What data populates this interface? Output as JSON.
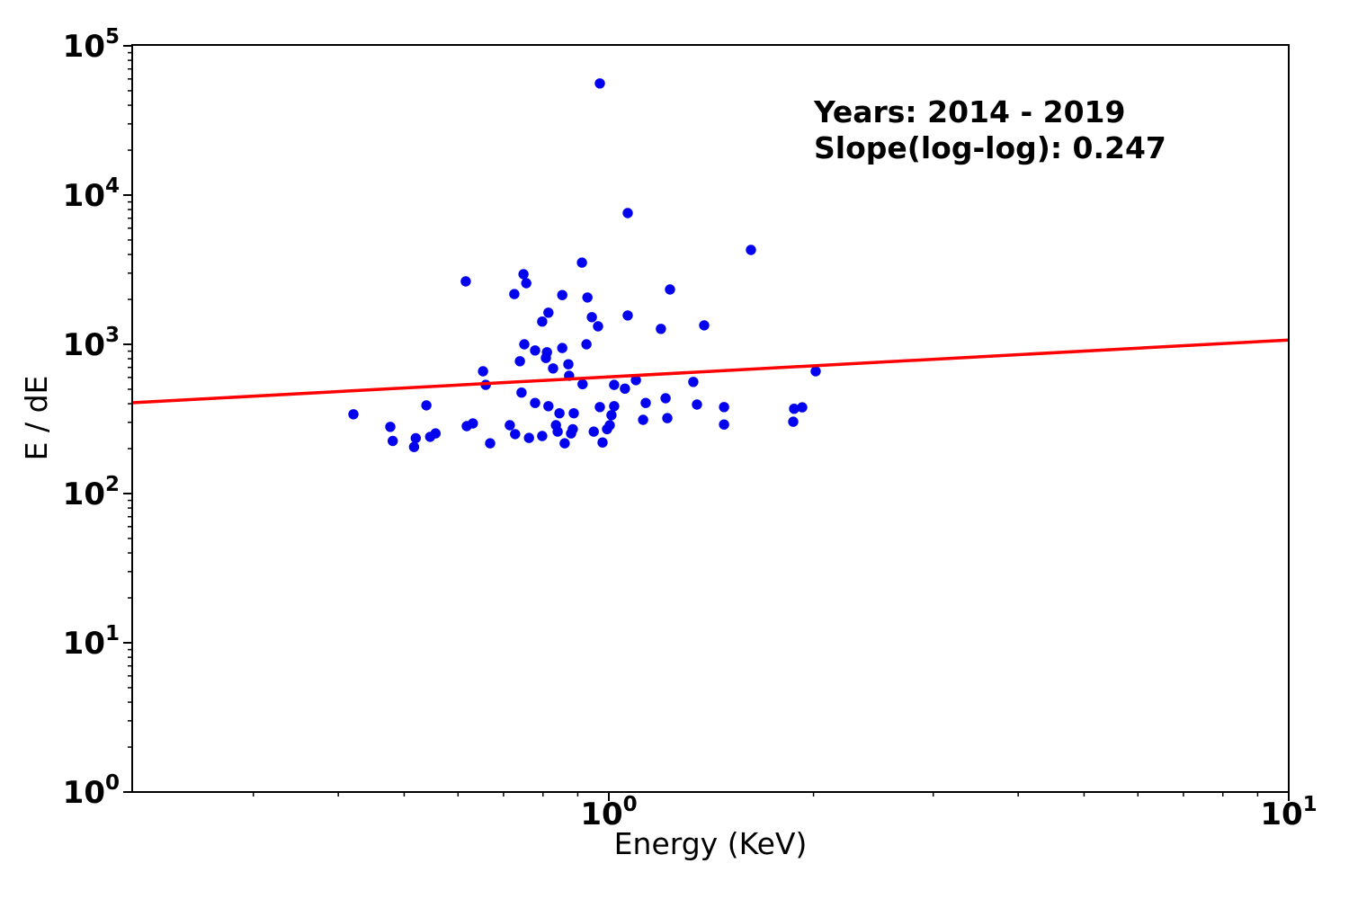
{
  "figure": {
    "background": "#ffffff",
    "annotation": {
      "line1": "Years: 2014 - 2019",
      "line2": "Slope(log-log): 0.247"
    }
  },
  "chart_data": {
    "type": "scatter",
    "title": "",
    "xlabel": "Energy (KeV)",
    "ylabel": "E / dE",
    "xscale": "log",
    "yscale": "log",
    "xlim": [
      0.199,
      10
    ],
    "ylim": [
      1,
      100000
    ],
    "grid": false,
    "legend": "none",
    "annotation_lines": [
      "Years: 2014 - 2019",
      "Slope(log-log): 0.247"
    ],
    "years": "2014 - 2019",
    "slope_loglog": 0.247,
    "x_major_ticks": [
      1,
      10
    ],
    "y_major_ticks": [
      1,
      10,
      100,
      1000,
      10000,
      100000
    ],
    "colors": {
      "points": "#0202EE",
      "fit_line": "#FF0000",
      "axis": "#000000"
    },
    "marker_radius_px": 5.7,
    "points": [
      [
        0.97,
        56000
      ],
      [
        1.066,
        7580
      ],
      [
        0.913,
        3530
      ],
      [
        1.618,
        4290
      ],
      [
        1.23,
        2330
      ],
      [
        0.616,
        2640
      ],
      [
        0.749,
        2950
      ],
      [
        0.756,
        2570
      ],
      [
        0.726,
        2170
      ],
      [
        0.854,
        2140
      ],
      [
        0.93,
        2060
      ],
      [
        0.815,
        1630
      ],
      [
        0.798,
        1420
      ],
      [
        0.944,
        1520
      ],
      [
        0.964,
        1320
      ],
      [
        1.066,
        1560
      ],
      [
        1.193,
        1270
      ],
      [
        1.381,
        1340
      ],
      [
        0.751,
        1000
      ],
      [
        0.779,
        910
      ],
      [
        0.811,
        885
      ],
      [
        0.808,
        810
      ],
      [
        0.854,
        945
      ],
      [
        0.927,
        1000
      ],
      [
        0.74,
        770
      ],
      [
        0.828,
        690
      ],
      [
        0.872,
        735
      ],
      [
        0.874,
        615
      ],
      [
        0.653,
        660
      ],
      [
        0.659,
        535
      ],
      [
        2.015,
        660
      ],
      [
        0.915,
        540
      ],
      [
        1.018,
        535
      ],
      [
        1.056,
        505
      ],
      [
        1.096,
        575
      ],
      [
        1.331,
        560
      ],
      [
        0.744,
        475
      ],
      [
        0.779,
        405
      ],
      [
        0.815,
        385
      ],
      [
        0.846,
        345
      ],
      [
        0.888,
        345
      ],
      [
        0.97,
        380
      ],
      [
        1.009,
        335
      ],
      [
        1.018,
        385
      ],
      [
        1.212,
        435
      ],
      [
        1.133,
        405
      ],
      [
        1.348,
        395
      ],
      [
        1.477,
        380
      ],
      [
        0.539,
        390
      ],
      [
        0.618,
        283
      ],
      [
        0.631,
        295
      ],
      [
        0.421,
        340
      ],
      [
        0.477,
        280
      ],
      [
        0.481,
        225
      ],
      [
        0.52,
        235
      ],
      [
        0.517,
        205
      ],
      [
        0.546,
        240
      ],
      [
        0.556,
        253
      ],
      [
        0.669,
        217
      ],
      [
        0.715,
        287
      ],
      [
        0.728,
        250
      ],
      [
        0.763,
        236
      ],
      [
        0.798,
        243
      ],
      [
        0.836,
        287
      ],
      [
        0.841,
        260
      ],
      [
        0.861,
        217
      ],
      [
        0.88,
        253
      ],
      [
        0.885,
        270
      ],
      [
        0.95,
        260
      ],
      [
        0.979,
        220
      ],
      [
        0.994,
        270
      ],
      [
        1.003,
        287
      ],
      [
        1.123,
        312
      ],
      [
        1.219,
        320
      ],
      [
        1.477,
        290
      ],
      [
        1.873,
        370
      ],
      [
        1.925,
        378
      ],
      [
        1.867,
        303
      ]
    ],
    "fit_line": {
      "slope": 0.247,
      "value_at_1kev": 605,
      "x_start": 0.199,
      "x_end": 10
    }
  }
}
